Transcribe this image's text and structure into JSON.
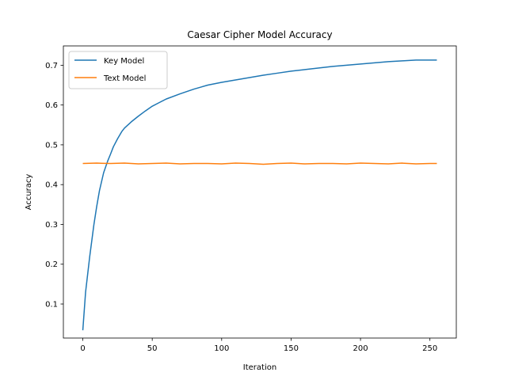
{
  "chart_data": {
    "type": "line",
    "title": "Caesar Cipher Model Accuracy",
    "xlabel": "Iteration",
    "ylabel": "Accuracy",
    "xlim": [
      -14,
      269
    ],
    "ylim": [
      0.0145,
      0.7485
    ],
    "xticks": [
      0,
      50,
      100,
      150,
      200,
      250
    ],
    "yticks": [
      0.1,
      0.2,
      0.3,
      0.4,
      0.5,
      0.6,
      0.7
    ],
    "ytick_labels": [
      "0.1",
      "0.2",
      "0.3",
      "0.4",
      "0.5",
      "0.6",
      "0.7"
    ],
    "grid": false,
    "legend_position": "upper-left",
    "series": [
      {
        "name": "Key Model",
        "color": "#1f77b4",
        "x": [
          0,
          2,
          5,
          8,
          10,
          12,
          15,
          18,
          20,
          22,
          25,
          28,
          30,
          35,
          40,
          45,
          50,
          55,
          60,
          70,
          80,
          90,
          100,
          110,
          120,
          130,
          140,
          150,
          160,
          170,
          180,
          190,
          200,
          210,
          220,
          230,
          240,
          250,
          255
        ],
        "y": [
          0.034,
          0.13,
          0.22,
          0.3,
          0.345,
          0.385,
          0.43,
          0.46,
          0.477,
          0.495,
          0.515,
          0.533,
          0.542,
          0.558,
          0.572,
          0.585,
          0.597,
          0.606,
          0.615,
          0.628,
          0.64,
          0.65,
          0.657,
          0.663,
          0.669,
          0.675,
          0.68,
          0.685,
          0.689,
          0.693,
          0.697,
          0.7,
          0.703,
          0.706,
          0.709,
          0.711,
          0.713,
          0.713,
          0.713
        ]
      },
      {
        "name": "Text Model",
        "color": "#ff7f0e",
        "x": [
          0,
          10,
          20,
          30,
          40,
          50,
          60,
          70,
          80,
          90,
          100,
          110,
          120,
          130,
          140,
          150,
          160,
          170,
          180,
          190,
          200,
          210,
          220,
          230,
          240,
          250,
          255
        ],
        "y": [
          0.453,
          0.454,
          0.453,
          0.454,
          0.452,
          0.453,
          0.454,
          0.452,
          0.453,
          0.453,
          0.452,
          0.454,
          0.453,
          0.451,
          0.453,
          0.454,
          0.452,
          0.453,
          0.453,
          0.452,
          0.454,
          0.453,
          0.452,
          0.454,
          0.452,
          0.453,
          0.453
        ]
      }
    ]
  }
}
